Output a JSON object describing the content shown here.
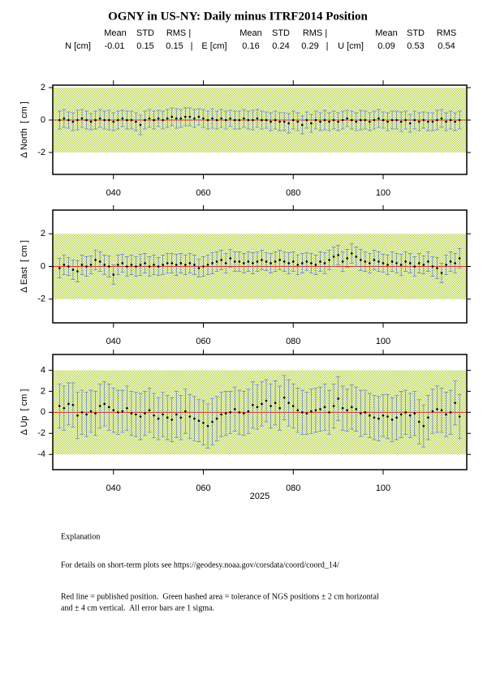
{
  "title": "OGNY in US-NY: Daily minus ITRF2014 Position",
  "stats": [
    {
      "label": "N [cm]",
      "headers": [
        "Mean",
        "STD",
        "RMS |"
      ],
      "values": [
        -0.01,
        0.15,
        0.15
      ],
      "separator": "|"
    },
    {
      "label": "E [cm]",
      "headers": [
        "Mean",
        "STD",
        "RMS |"
      ],
      "values": [
        0.16,
        0.24,
        0.29
      ],
      "separator": "|"
    },
    {
      "label": "U [cm]",
      "headers": [
        "Mean",
        "STD",
        "RMS"
      ],
      "values": [
        0.09,
        0.53,
        0.54
      ]
    }
  ],
  "chart_data": [
    {
      "type": "errorbar",
      "ylabel": "Δ North  [ cm ]",
      "color": "#000000",
      "error_color": "#5a78d0",
      "band": [
        -2,
        2
      ],
      "band_color": "#b4d23c",
      "reference": 0,
      "reference_color": "#e03030",
      "xlim": [
        26.5,
        118.6
      ],
      "ylim": [
        -3.35,
        2.15
      ],
      "xticks": [
        {
          "value": 40,
          "label": "040"
        },
        {
          "value": 60,
          "label": "060"
        },
        {
          "value": 80,
          "label": "080"
        },
        {
          "value": 100,
          "label": "100"
        }
      ],
      "yticks": [
        -2,
        0,
        2
      ],
      "x": [
        28,
        29,
        30,
        31,
        32,
        33,
        34,
        35,
        36,
        37,
        38,
        39,
        40,
        41,
        42,
        43,
        44,
        45,
        46,
        47,
        48,
        49,
        50,
        51,
        52,
        53,
        54,
        55,
        56,
        57,
        58,
        59,
        60,
        61,
        62,
        63,
        64,
        65,
        66,
        67,
        68,
        69,
        70,
        71,
        72,
        73,
        74,
        75,
        76,
        77,
        78,
        79,
        80,
        81,
        82,
        83,
        84,
        85,
        86,
        87,
        88,
        89,
        90,
        91,
        92,
        93,
        94,
        95,
        96,
        97,
        98,
        99,
        100,
        101,
        102,
        103,
        104,
        105,
        106,
        107,
        108,
        109,
        110,
        111,
        112,
        113,
        114,
        115,
        116,
        117
      ],
      "values": [
        0.0,
        0.1,
        0.0,
        -0.1,
        0.0,
        0.1,
        0.0,
        -0.1,
        0.0,
        0.1,
        0.0,
        0.0,
        -0.1,
        0.0,
        0.1,
        0.0,
        0.0,
        -0.1,
        -0.3,
        0.0,
        0.1,
        0.0,
        0.1,
        0.0,
        0.1,
        0.2,
        0.1,
        0.1,
        0.2,
        0.2,
        0.1,
        0.2,
        0.1,
        0.0,
        0.1,
        0.0,
        0.1,
        0.0,
        0.1,
        0.0,
        0.0,
        0.1,
        0.0,
        0.0,
        0.1,
        0.0,
        0.0,
        -0.1,
        0.0,
        -0.1,
        -0.1,
        -0.2,
        0.0,
        -0.1,
        -0.3,
        0.0,
        -0.2,
        0.0,
        -0.1,
        0.0,
        -0.1,
        0.0,
        -0.1,
        0.0,
        0.1,
        0.0,
        -0.1,
        0.0,
        0.0,
        -0.1,
        0.0,
        0.1,
        0.0,
        -0.1,
        0.0,
        0.0,
        -0.1,
        0.0,
        -0.2,
        0.0,
        -0.1,
        0.0,
        -0.1,
        -0.1,
        0.0,
        0.1,
        -0.1,
        0.0,
        -0.1,
        0.0
      ],
      "errors": [
        0.55,
        0.55,
        0.5,
        0.55,
        0.6,
        0.55,
        0.55,
        0.5,
        0.55,
        0.55,
        0.55,
        0.6,
        0.55,
        0.55,
        0.5,
        0.55,
        0.55,
        0.55,
        0.6,
        0.55,
        0.55,
        0.55,
        0.5,
        0.55,
        0.55,
        0.55,
        0.6,
        0.55,
        0.55,
        0.55,
        0.55,
        0.5,
        0.55,
        0.55,
        0.6,
        0.55,
        0.55,
        0.55,
        0.5,
        0.55,
        0.55,
        0.55,
        0.55,
        0.6,
        0.55,
        0.55,
        0.5,
        0.55,
        0.55,
        0.55,
        0.55,
        0.6,
        0.55,
        0.55,
        0.55,
        0.5,
        0.55,
        0.55,
        0.55,
        0.6,
        0.55,
        0.55,
        0.55,
        0.55,
        0.5,
        0.55,
        0.55,
        0.6,
        0.55,
        0.55,
        0.55,
        0.55,
        0.5,
        0.55,
        0.55,
        0.55,
        0.6,
        0.55,
        0.55,
        0.55,
        0.55,
        0.5,
        0.55,
        0.55,
        0.6,
        0.55,
        0.55,
        0.55,
        0.55,
        0.55
      ]
    },
    {
      "type": "errorbar",
      "ylabel": "Δ East  [ cm ]",
      "color": "#000000",
      "error_color": "#5a78d0",
      "band": [
        -2,
        2
      ],
      "band_color": "#b4d23c",
      "reference": 0,
      "reference_color": "#e03030",
      "xlim": [
        26.5,
        118.6
      ],
      "ylim": [
        -3.45,
        3.45
      ],
      "xticks": [
        {
          "value": 40,
          "label": "040"
        },
        {
          "value": 60,
          "label": "060"
        },
        {
          "value": 80,
          "label": "080"
        },
        {
          "value": 100,
          "label": "100"
        }
      ],
      "yticks": [
        -2,
        0,
        2
      ],
      "x": [
        28,
        29,
        30,
        31,
        32,
        33,
        34,
        35,
        36,
        37,
        38,
        39,
        40,
        41,
        42,
        43,
        44,
        45,
        46,
        47,
        48,
        49,
        50,
        51,
        52,
        53,
        54,
        55,
        56,
        57,
        58,
        59,
        60,
        61,
        62,
        63,
        64,
        65,
        66,
        67,
        68,
        69,
        70,
        71,
        72,
        73,
        74,
        75,
        76,
        77,
        78,
        79,
        80,
        81,
        82,
        83,
        84,
        85,
        86,
        87,
        88,
        89,
        90,
        91,
        92,
        93,
        94,
        95,
        96,
        97,
        98,
        99,
        100,
        101,
        102,
        103,
        104,
        105,
        106,
        107,
        108,
        109,
        110,
        111,
        112,
        113,
        114,
        115,
        116,
        117
      ],
      "values": [
        -0.1,
        0.1,
        0.0,
        -0.2,
        -0.3,
        0.1,
        0.0,
        0.1,
        0.4,
        0.3,
        0.1,
        0.0,
        -0.5,
        0.1,
        0.2,
        0.0,
        0.1,
        0.0,
        0.1,
        0.2,
        0.0,
        0.1,
        0.0,
        0.1,
        0.2,
        0.2,
        0.1,
        0.2,
        0.1,
        0.2,
        0.1,
        -0.1,
        0.0,
        0.1,
        0.2,
        0.3,
        0.4,
        0.2,
        0.5,
        0.3,
        0.3,
        0.2,
        0.3,
        0.2,
        0.3,
        0.4,
        0.3,
        0.2,
        0.3,
        0.4,
        0.3,
        0.2,
        0.3,
        0.1,
        0.2,
        0.3,
        0.2,
        0.1,
        0.3,
        0.2,
        0.4,
        0.6,
        0.7,
        0.3,
        0.5,
        0.8,
        0.6,
        0.4,
        0.3,
        0.2,
        0.4,
        0.3,
        0.2,
        0.1,
        0.3,
        0.2,
        0.1,
        0.3,
        0.2,
        0.0,
        0.2,
        0.1,
        0.3,
        0.0,
        -0.1,
        -0.4,
        0.1,
        0.3,
        0.2,
        0.5
      ],
      "errors": [
        0.6,
        0.6,
        0.55,
        0.6,
        0.65,
        0.6,
        0.6,
        0.55,
        0.6,
        0.6,
        0.6,
        0.65,
        0.6,
        0.6,
        0.55,
        0.6,
        0.6,
        0.6,
        0.65,
        0.6,
        0.6,
        0.6,
        0.55,
        0.6,
        0.6,
        0.6,
        0.65,
        0.6,
        0.6,
        0.6,
        0.6,
        0.55,
        0.6,
        0.6,
        0.65,
        0.6,
        0.6,
        0.6,
        0.55,
        0.6,
        0.6,
        0.6,
        0.6,
        0.65,
        0.6,
        0.6,
        0.55,
        0.6,
        0.6,
        0.6,
        0.6,
        0.65,
        0.6,
        0.6,
        0.6,
        0.55,
        0.6,
        0.6,
        0.6,
        0.65,
        0.6,
        0.6,
        0.6,
        0.6,
        0.55,
        0.6,
        0.6,
        0.65,
        0.6,
        0.6,
        0.6,
        0.6,
        0.55,
        0.6,
        0.6,
        0.6,
        0.65,
        0.6,
        0.6,
        0.6,
        0.6,
        0.55,
        0.6,
        0.6,
        0.65,
        0.6,
        0.6,
        0.6,
        0.6,
        0.6
      ]
    },
    {
      "type": "errorbar",
      "ylabel": "Δ Up  [ cm ]",
      "xlabel": "2025",
      "color": "#000000",
      "error_color": "#5a78d0",
      "band": [
        -4,
        4
      ],
      "band_color": "#b4d23c",
      "reference": 0,
      "reference_color": "#e03030",
      "xlim": [
        26.5,
        118.6
      ],
      "ylim": [
        -5.45,
        5.5
      ],
      "xticks": [
        {
          "value": 40,
          "label": "040"
        },
        {
          "value": 60,
          "label": "060"
        },
        {
          "value": 80,
          "label": "080"
        },
        {
          "value": 100,
          "label": "100"
        }
      ],
      "yticks": [
        -4,
        -2,
        0,
        2,
        4
      ],
      "x": [
        28,
        29,
        30,
        31,
        32,
        33,
        34,
        35,
        36,
        37,
        38,
        39,
        40,
        41,
        42,
        43,
        44,
        45,
        46,
        47,
        48,
        49,
        50,
        51,
        52,
        53,
        54,
        55,
        56,
        57,
        58,
        59,
        60,
        61,
        62,
        63,
        64,
        65,
        66,
        67,
        68,
        69,
        70,
        71,
        72,
        73,
        74,
        75,
        76,
        77,
        78,
        79,
        80,
        81,
        82,
        83,
        84,
        85,
        86,
        87,
        88,
        89,
        90,
        91,
        92,
        93,
        94,
        95,
        96,
        97,
        98,
        99,
        100,
        101,
        102,
        103,
        104,
        105,
        106,
        107,
        108,
        109,
        110,
        111,
        112,
        113,
        114,
        115,
        116,
        117
      ],
      "values": [
        0.6,
        0.4,
        0.8,
        0.7,
        -0.3,
        0.0,
        -0.2,
        0.1,
        -0.1,
        0.6,
        0.8,
        0.5,
        0.2,
        0.0,
        0.1,
        0.4,
        -0.1,
        -0.2,
        -0.4,
        -0.1,
        0.2,
        -0.3,
        -0.6,
        -0.2,
        -0.5,
        -0.7,
        -0.2,
        -0.5,
        0.1,
        -0.4,
        -0.6,
        -0.8,
        -1.0,
        -1.3,
        -0.9,
        -0.6,
        -0.2,
        -0.1,
        0.0,
        0.3,
        0.0,
        -0.1,
        0.1,
        0.7,
        0.5,
        0.8,
        1.1,
        0.6,
        0.9,
        0.4,
        1.4,
        0.9,
        0.6,
        0.2,
        0.0,
        -0.1,
        0.1,
        0.2,
        0.3,
        0.5,
        0.0,
        0.6,
        1.3,
        0.4,
        0.2,
        0.5,
        0.3,
        -0.1,
        0.0,
        -0.3,
        -0.5,
        -0.6,
        -0.3,
        -0.4,
        -0.7,
        -0.5,
        -0.2,
        0.0,
        -0.3,
        -0.1,
        -0.9,
        -1.3,
        -0.5,
        0.1,
        0.3,
        0.2,
        -0.2,
        0.0,
        0.9,
        -0.4
      ],
      "errors": [
        2.1,
        2.1,
        2.0,
        2.1,
        2.2,
        2.1,
        2.1,
        2.0,
        2.1,
        2.1,
        2.1,
        2.2,
        2.1,
        2.1,
        2.0,
        2.1,
        2.1,
        2.1,
        2.2,
        2.1,
        2.1,
        2.1,
        2.0,
        2.1,
        2.1,
        2.1,
        2.2,
        2.1,
        2.1,
        2.1,
        2.1,
        2.0,
        2.1,
        2.1,
        2.2,
        2.1,
        2.1,
        2.1,
        2.0,
        2.1,
        2.1,
        2.1,
        2.1,
        2.2,
        2.1,
        2.1,
        2.0,
        2.1,
        2.1,
        2.1,
        2.1,
        2.2,
        2.1,
        2.1,
        2.1,
        2.0,
        2.1,
        2.1,
        2.1,
        2.2,
        2.1,
        2.1,
        2.1,
        2.1,
        2.0,
        2.1,
        2.1,
        2.2,
        2.1,
        2.1,
        2.1,
        2.1,
        2.0,
        2.1,
        2.1,
        2.1,
        2.2,
        2.1,
        2.1,
        2.1,
        2.1,
        2.0,
        2.1,
        2.1,
        2.2,
        2.1,
        2.1,
        2.1,
        2.1,
        2.1
      ]
    }
  ],
  "explanation": {
    "heading": "Explanation",
    "lines": [
      "For details on short-term plots see https://geodesy.noaa.gov/corsdata/coord/coord_14/",
      "Red line = published position.  Green hashed area = tolerance of NGS positions ± 2 cm horizontal",
      "and ± 4 cm vertical.  All error bars are 1 sigma."
    ]
  }
}
